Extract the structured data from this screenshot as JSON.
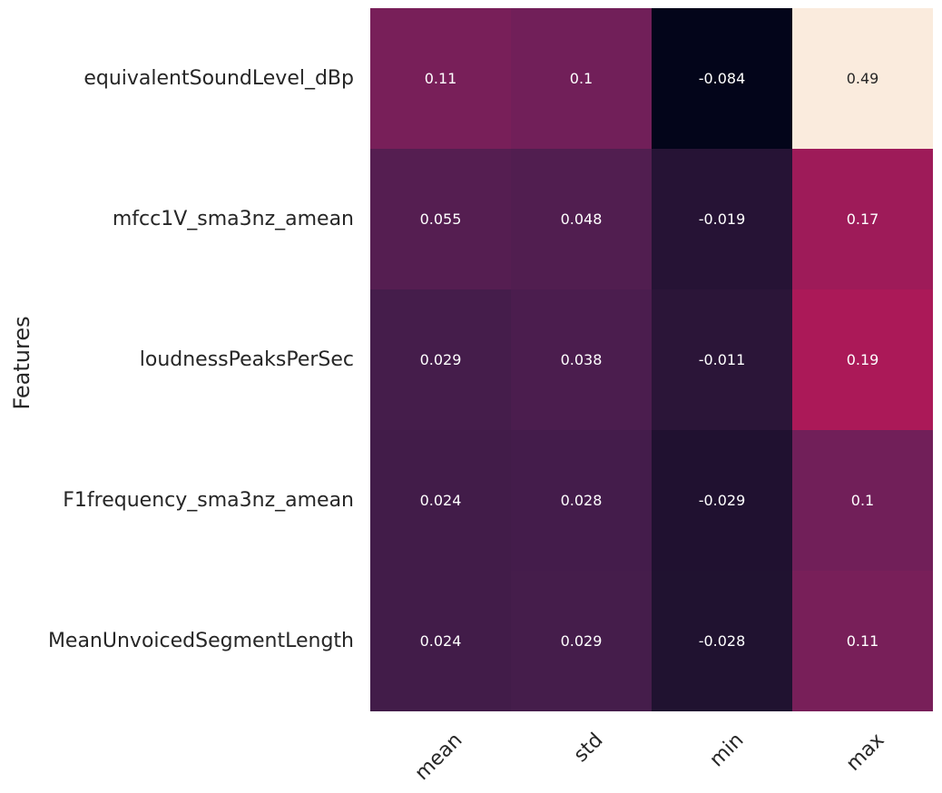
{
  "chart_data": {
    "type": "heatmap",
    "ylabel": "Features",
    "xlabel": "",
    "rows": [
      "equivalentSoundLevel_dBp",
      "mfcc1V_sma3nz_amean",
      "loudnessPeaksPerSec",
      "F1frequency_sma3nz_amean",
      "MeanUnvoicedSegmentLength"
    ],
    "columns": [
      "mean",
      "std",
      "min",
      "max"
    ],
    "values": [
      [
        0.11,
        0.1,
        -0.084,
        0.49
      ],
      [
        0.055,
        0.048,
        -0.019,
        0.17
      ],
      [
        0.029,
        0.038,
        -0.011,
        0.19
      ],
      [
        0.024,
        0.028,
        -0.029,
        0.1
      ],
      [
        0.024,
        0.029,
        -0.028,
        0.11
      ]
    ],
    "labels": [
      [
        "0.11",
        "0.1",
        "-0.084",
        "0.49"
      ],
      [
        "0.055",
        "0.048",
        "-0.019",
        "0.17"
      ],
      [
        "0.029",
        "0.038",
        "-0.011",
        "0.19"
      ],
      [
        "0.024",
        "0.028",
        "-0.029",
        "0.1"
      ],
      [
        "0.024",
        "0.029",
        "-0.028",
        "0.11"
      ]
    ],
    "colorbar": false,
    "colormap": "rocket",
    "vmin": -0.084,
    "vmax": 0.49
  }
}
